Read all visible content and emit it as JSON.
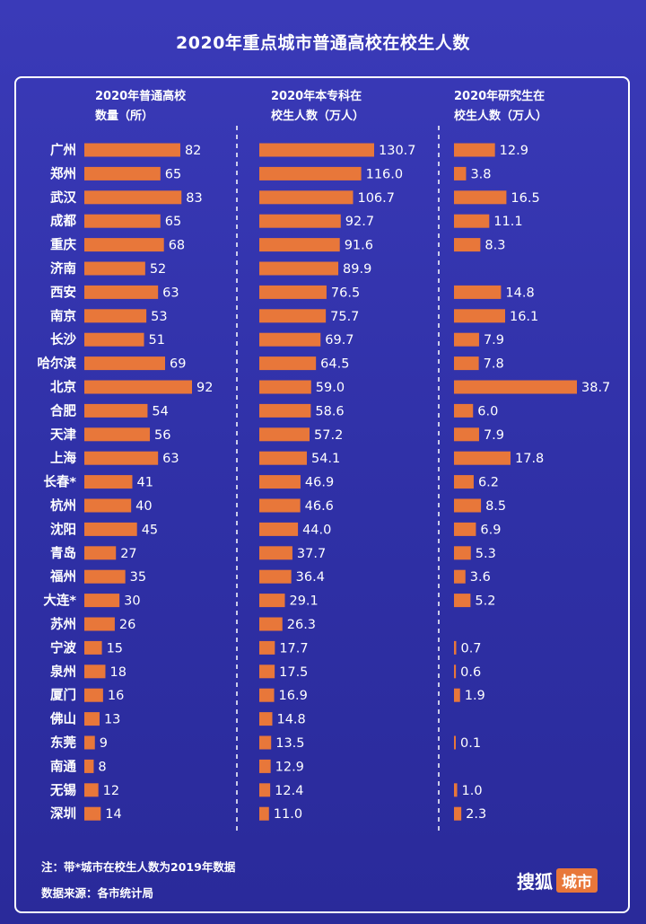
{
  "title": "2020年重点城市普通高校在校生人数",
  "headers": {
    "col1": [
      "2020年普通高校",
      "数量（所）"
    ],
    "col2": [
      "2020年本专科在",
      "校生人数（万人）"
    ],
    "col3": [
      "2020年研究生在",
      "校生人数（万人）"
    ]
  },
  "footnotes": {
    "note": "注：带*城市在校生人数为2019年数据",
    "source": "数据来源：各市统计局"
  },
  "logo": {
    "main": "搜狐",
    "box": "城市"
  },
  "colors": {
    "bar": "#e8773a",
    "background": "#3232aa",
    "text": "#ffffff"
  },
  "chart_data": {
    "type": "bar",
    "orientation": "horizontal",
    "title": "2020年重点城市普通高校在校生人数",
    "categories": [
      "广州",
      "郑州",
      "武汉",
      "成都",
      "重庆",
      "济南",
      "西安",
      "南京",
      "长沙",
      "哈尔滨",
      "北京",
      "合肥",
      "天津",
      "上海",
      "长春*",
      "杭州",
      "沈阳",
      "青岛",
      "福州",
      "大连*",
      "苏州",
      "宁波",
      "泉州",
      "厦门",
      "佛山",
      "东莞",
      "南通",
      "无锡",
      "深圳"
    ],
    "series": [
      {
        "name": "2020年普通高校数量（所）",
        "values": [
          82,
          65,
          83,
          65,
          68,
          52,
          63,
          53,
          51,
          69,
          92,
          54,
          56,
          63,
          41,
          40,
          45,
          27,
          35,
          30,
          26,
          15,
          18,
          16,
          13,
          9,
          8,
          12,
          14
        ]
      },
      {
        "name": "2020年本专科在校生人数（万人）",
        "values": [
          "130.7",
          "116.0",
          "106.7",
          "92.7",
          "91.6",
          "89.9",
          "76.5",
          "75.7",
          "69.7",
          "64.5",
          "59.0",
          "58.6",
          "57.2",
          "54.1",
          "46.9",
          "46.6",
          "44.0",
          "37.7",
          "36.4",
          "29.1",
          "26.3",
          "17.7",
          "17.5",
          "16.9",
          "14.8",
          "13.5",
          "12.9",
          "12.4",
          "11.0"
        ]
      },
      {
        "name": "2020年研究生在校生人数（万人）",
        "values": [
          "12.9",
          "3.8",
          "16.5",
          "11.1",
          "8.3",
          null,
          "14.8",
          "16.1",
          "7.9",
          "7.8",
          "38.7",
          "6.0",
          "7.9",
          "17.8",
          "6.2",
          "8.5",
          "6.9",
          "5.3",
          "3.6",
          "5.2",
          null,
          "0.7",
          "0.6",
          "1.9",
          null,
          "0.1",
          "",
          "1.0",
          "2.3"
        ]
      }
    ]
  }
}
